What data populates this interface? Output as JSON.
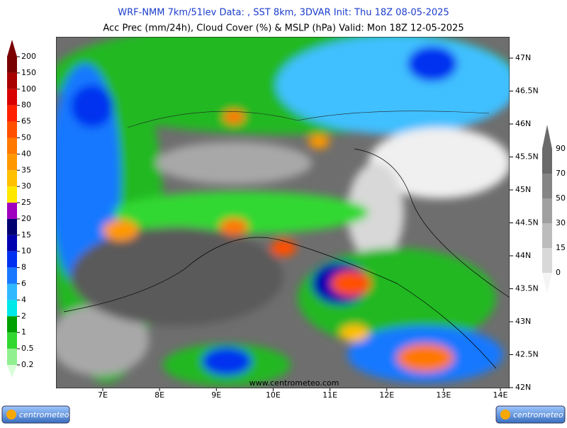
{
  "header": {
    "line1": "WRF-NMM 7km/51lev  Data: , SST 8km, 3DVAR  Init: Thu 18Z 08-05-2025",
    "line2": "Acc Prec (mm/24h), Cloud Cover (%) & MSLP (hPa)  Valid: Mon 18Z 12-05-2025"
  },
  "precip_scale": {
    "labels": [
      200,
      150,
      100,
      80,
      65,
      50,
      40,
      35,
      30,
      25,
      20,
      15,
      10,
      8,
      6,
      4,
      2,
      1,
      0.5,
      0.2
    ],
    "colors": [
      "#7a0000",
      "#a80000",
      "#d80000",
      "#ff2000",
      "#ff5000",
      "#ff7800",
      "#ff9800",
      "#ffc000",
      "#ffe800",
      "#a000c0",
      "#000070",
      "#0000b0",
      "#0030f0",
      "#1878ff",
      "#30b8ff",
      "#00e8e8",
      "#00a000",
      "#30d830",
      "#90f090",
      "#d8ffd8"
    ]
  },
  "cloud_scale": {
    "labels": [
      90,
      70,
      50,
      30,
      15,
      0
    ],
    "colors": [
      "#6a6a6a",
      "#858585",
      "#a0a0a0",
      "#bcbcbc",
      "#d8d8d8",
      "#f4f4f4"
    ]
  },
  "lat_labels": [
    "47N",
    "46.5N",
    "46N",
    "45.5N",
    "45N",
    "44.5N",
    "44N",
    "43.5N",
    "43N",
    "42.5N",
    "42N"
  ],
  "lon_labels": [
    "7E",
    "8E",
    "9E",
    "10E",
    "11E",
    "12E",
    "13E",
    "14E"
  ],
  "watermark": "www.centrometeo.com",
  "logos": [
    "centrometeo",
    "centrometeo"
  ]
}
